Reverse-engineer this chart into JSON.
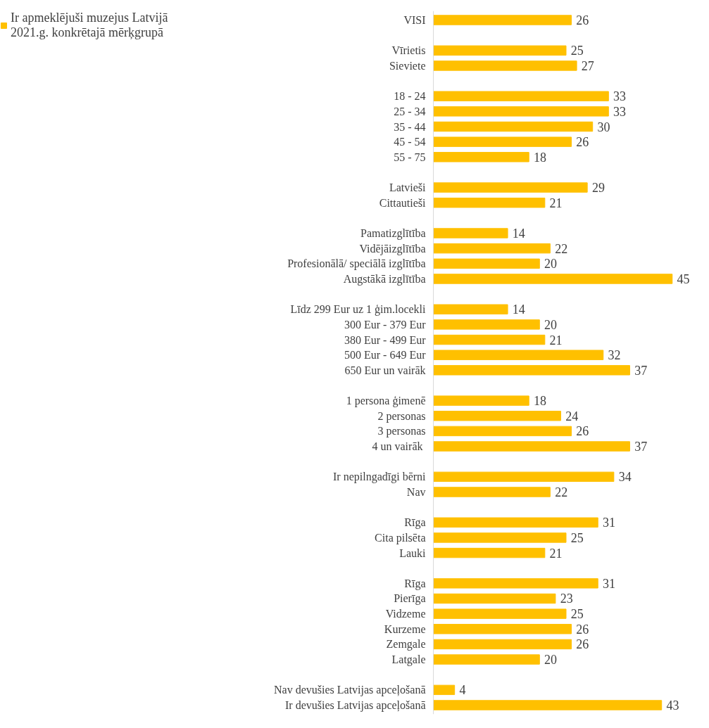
{
  "chart_data": {
    "type": "bar",
    "orientation": "horizontal",
    "data_labels": true,
    "legend": "top left",
    "grid": false,
    "categories": [
      "VISI",
      null,
      "Vīrietis",
      "Sieviete",
      null,
      "18 - 24",
      "25 - 34",
      "35 - 44",
      "45 - 54",
      "55 - 75",
      null,
      "Latvieši",
      "Cittautieši",
      null,
      "Pamatizglītība",
      "Vidējāizglītība",
      "Profesionālā/ speciālā izglītība",
      "Augstākā izglītība",
      null,
      "Līdz 299 Eur uz 1 ģim.locekli",
      "300 Eur - 379 Eur",
      "380 Eur - 499 Eur",
      "500 Eur - 649 Eur",
      "650 Eur un vairāk",
      null,
      "1 persona ģimenē",
      "2 personas",
      "3 personas",
      "4  un vairāk",
      null,
      "Ir nepilngadīgi bērni",
      "Nav",
      null,
      "Rīga",
      "Cita pilsēta",
      "Lauki",
      null,
      "Rīga",
      "Pierīga",
      "Vidzeme",
      "Kurzeme",
      "Zemgale",
      "Latgale",
      null,
      "Nav devušies Latvijas apceļošanā",
      "Ir devušies Latvijas apceļošanā"
    ],
    "series": [
      {
        "name": "Ir apmeklējuši muzejus Latvijā 2021.g. konkrētajā mērķgrupā",
        "color": "#ffc000",
        "values": [
          26,
          null,
          25,
          27,
          null,
          33,
          33,
          30,
          26,
          18,
          null,
          29,
          21,
          null,
          14,
          22,
          20,
          45,
          null,
          14,
          20,
          21,
          32,
          37,
          null,
          18,
          24,
          26,
          37,
          null,
          34,
          22,
          null,
          31,
          25,
          21,
          null,
          31,
          23,
          25,
          26,
          26,
          20,
          null,
          4,
          43
        ]
      }
    ]
  }
}
